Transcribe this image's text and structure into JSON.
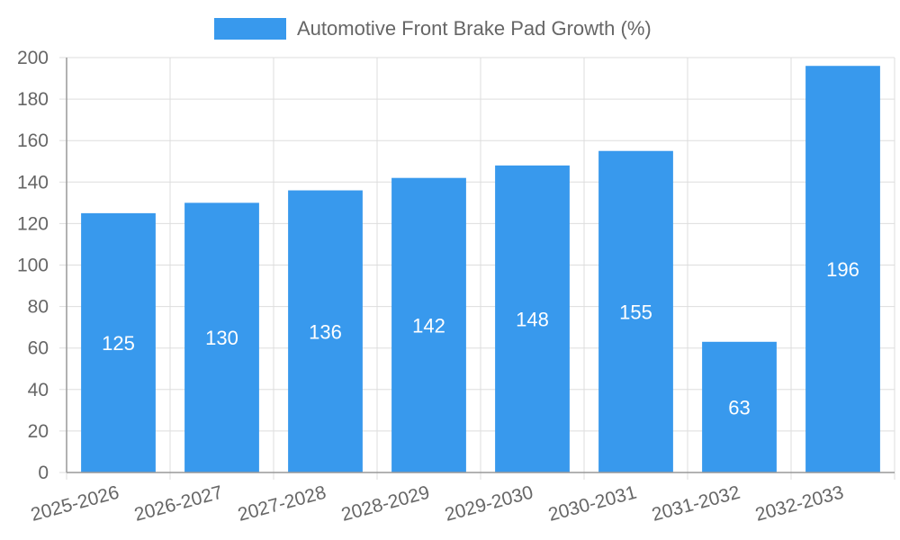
{
  "chart_data": {
    "type": "bar",
    "title": "",
    "legend": {
      "label": "Automotive Front Brake Pad Growth (%)",
      "position": "top-center"
    },
    "categories": [
      "2025-2026",
      "2026-2027",
      "2027-2028",
      "2028-2029",
      "2029-2030",
      "2030-2031",
      "2031-2032",
      "2032-2033"
    ],
    "series": [
      {
        "name": "Automotive Front Brake Pad Growth (%)",
        "values": [
          125,
          130,
          136,
          142,
          148,
          155,
          63,
          196
        ]
      }
    ],
    "ylim": [
      0,
      200
    ],
    "yticks": [
      0,
      20,
      40,
      60,
      80,
      100,
      120,
      140,
      160,
      180,
      200
    ],
    "xlabel": "",
    "ylabel": "",
    "grid": true,
    "data_labels": "inside-center",
    "colors": {
      "bar": "#3899ED",
      "grid": "#dddddd",
      "axis": "#999999",
      "tick_text": "#666666",
      "data_label": "#ffffff"
    }
  }
}
